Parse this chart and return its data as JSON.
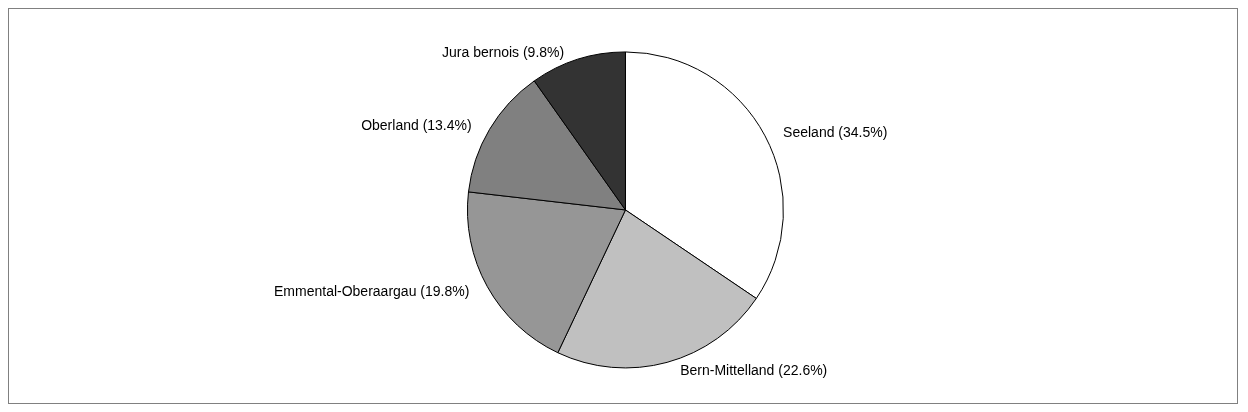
{
  "chart_data": {
    "type": "pie",
    "categories": [
      "Seeland",
      "Bern-Mittelland",
      "Emmental-Oberaargau",
      "Oberland",
      "Jura bernois"
    ],
    "values": [
      34.5,
      22.6,
      19.8,
      13.4,
      9.8
    ],
    "colors": [
      "#ffffff",
      "#c0c0c0",
      "#969696",
      "#808080",
      "#333333"
    ],
    "value_labels": [
      "(34.5%)",
      "(22.6%)",
      "(19.8%)",
      "(13.4%)",
      "(9.8%)"
    ],
    "legend": false
  }
}
